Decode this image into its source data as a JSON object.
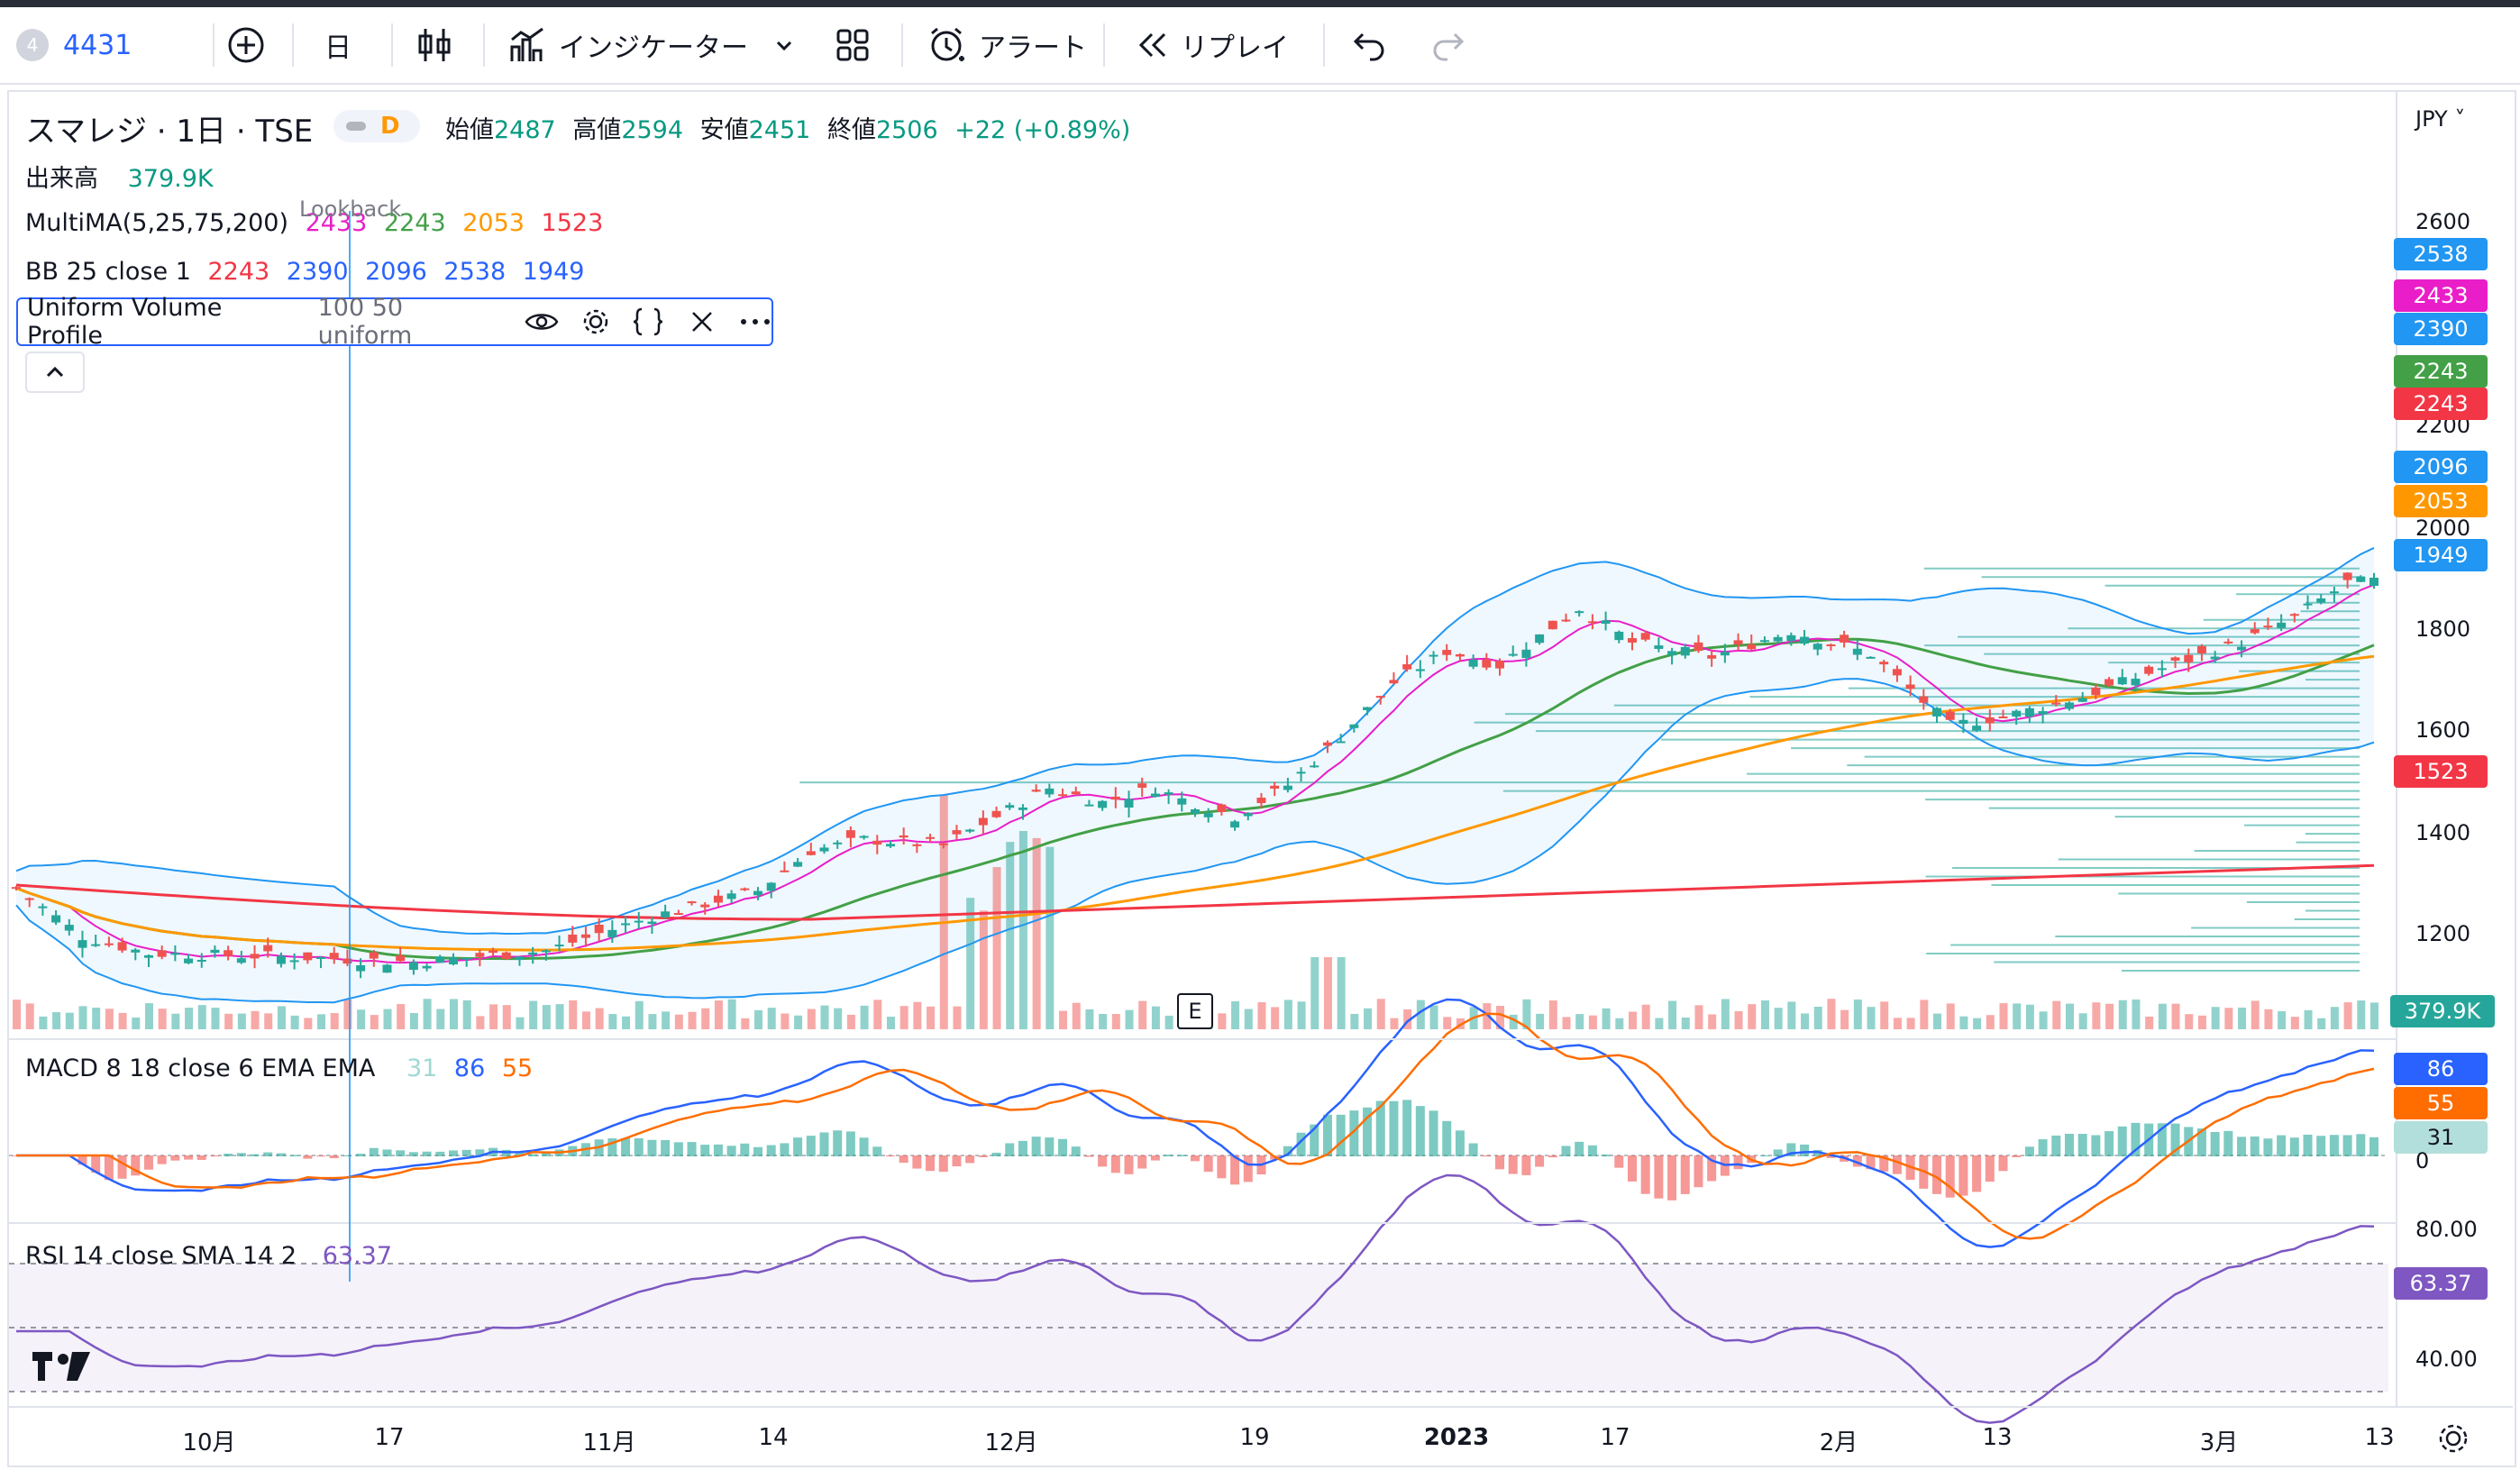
{
  "toolbar": {
    "symbol_badge": "4",
    "symbol": "4431",
    "interval": "日",
    "indicators_label": "インジケーター",
    "alert_label": "アラート",
    "replay_label": "リプレイ"
  },
  "legend": {
    "title": "スマレジ · 1日 · TSE",
    "open_label": "始値",
    "open": "2487",
    "high_label": "高値",
    "high": "2594",
    "low_label": "安値",
    "low": "2451",
    "close_label": "終値",
    "close": "2506",
    "change": "+22 (+0.89%)",
    "volume_label": "出来高",
    "volume": "379.9K",
    "ma_label": "MultiMA(5,25,75,200)",
    "ma5": "2433",
    "ma25": "2243",
    "ma75": "2053",
    "ma200": "1523",
    "lookback": "Lookback",
    "bb_label": "BB 25 close 1",
    "bb1": "2243",
    "bb2": "2390",
    "bb3": "2096",
    "bb4": "2538",
    "bb5": "1949",
    "vp_label": "Uniform Volume Profile",
    "vp_params": "100 50 uniform",
    "macd_label": "MACD 8 18 close 6 EMA EMA",
    "macd_hist": "31",
    "macd_line": "86",
    "macd_signal": "55",
    "rsi_label": "RSI 14 close SMA 14 2",
    "rsi_value": "63.37"
  },
  "price_axis": {
    "currency": "JPY",
    "ticks": [
      "2600",
      "2200",
      "2000",
      "1800",
      "1600",
      "1400",
      "1200"
    ],
    "tag_2538": "2538",
    "tag_2433": "2433",
    "tag_2390": "2390",
    "tag_2243a": "2243",
    "tag_2243b": "2243",
    "tag_2096": "2096",
    "tag_2053": "2053",
    "tag_1949": "1949",
    "tag_1523": "1523",
    "tag_volume": "379.9K",
    "tag_macd_line": "86",
    "tag_macd_signal": "55",
    "tag_macd_hist": "31",
    "macd_zero": "0",
    "rsi_80": "80.00",
    "rsi_40": "40.00",
    "tag_rsi": "63.37"
  },
  "time_axis": {
    "labels": [
      "10月",
      "17",
      "11月",
      "14",
      "12月",
      "19",
      "2023",
      "17",
      "2月",
      "13",
      "3月",
      "13"
    ]
  },
  "earnings_marker": "E",
  "colors": {
    "up": "#26a69a",
    "down": "#ef5350",
    "ma5": "#e91ec8",
    "ma25": "#43a047",
    "ma75": "#ff9800",
    "ma200": "#f23645",
    "bb": "#2196f3",
    "macd": "#2962ff",
    "signal": "#ff6d00",
    "rsi": "#7e57c2"
  }
}
